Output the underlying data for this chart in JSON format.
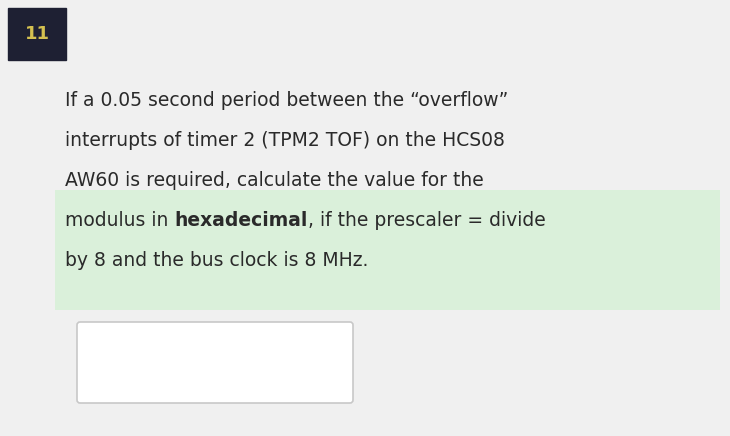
{
  "bg_color": "#f0f0f0",
  "number_label": "11",
  "number_bg": "#1e2033",
  "number_text_color": "#d4c050",
  "number_fontsize": 13,
  "highlight_color": "#c8f0c8",
  "highlight_alpha": 0.55,
  "text_color": "#2a2a2a",
  "text_fontsize": 13.5,
  "line1": "If a 0.05 second period between the “overflow”",
  "line2": "interrupts of timer 2 (TPM2 TOF) on the HCS08",
  "line3": "AW60 is required, calculate the value for the",
  "line4_pre": "modulus in ",
  "line4_bold": "hexadecimal",
  "line4_post": ", if the prescaler = divide",
  "line5": "by 8 and the bus clock is 8 MHz.",
  "answer_box_color": "#ffffff",
  "answer_box_border": "#c8c8c8"
}
